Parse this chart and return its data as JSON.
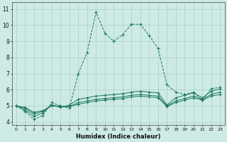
{
  "xlabel": "Humidex (Indice chaleur)",
  "x_values": [
    0,
    1,
    2,
    3,
    4,
    5,
    6,
    7,
    8,
    9,
    10,
    11,
    12,
    13,
    14,
    15,
    16,
    17,
    18,
    19,
    20,
    21,
    22,
    23
  ],
  "series": [
    [
      5.0,
      4.65,
      4.15,
      4.4,
      5.2,
      5.0,
      4.85,
      7.0,
      8.3,
      10.8,
      9.5,
      9.0,
      9.4,
      10.05,
      10.05,
      9.35,
      8.55,
      6.3,
      5.85,
      5.7,
      5.85,
      5.35,
      6.05,
      6.15
    ],
    [
      5.0,
      4.75,
      4.35,
      4.55,
      5.05,
      4.9,
      5.05,
      5.4,
      5.5,
      5.6,
      5.65,
      5.7,
      5.75,
      5.85,
      5.9,
      5.85,
      5.8,
      5.05,
      5.5,
      5.65,
      5.8,
      5.5,
      5.9,
      6.05
    ],
    [
      5.0,
      4.85,
      4.5,
      4.65,
      5.05,
      4.95,
      4.95,
      5.2,
      5.3,
      5.4,
      5.45,
      5.5,
      5.55,
      5.65,
      5.7,
      5.65,
      5.6,
      5.0,
      5.3,
      5.45,
      5.6,
      5.4,
      5.7,
      5.85
    ],
    [
      5.0,
      4.9,
      4.6,
      4.7,
      5.0,
      4.95,
      4.95,
      5.1,
      5.2,
      5.3,
      5.35,
      5.4,
      5.45,
      5.55,
      5.6,
      5.55,
      5.5,
      4.95,
      5.2,
      5.35,
      5.5,
      5.35,
      5.6,
      5.7
    ]
  ],
  "line_color": "#1a7a5e",
  "bg_color": "#ceeae4",
  "grid_color": "#aacfc8",
  "ylim": [
    3.8,
    11.4
  ],
  "xlim": [
    -0.5,
    23.5
  ],
  "yticks": [
    4,
    5,
    6,
    7,
    8,
    9,
    10,
    11
  ],
  "xticks": [
    0,
    1,
    2,
    3,
    4,
    5,
    6,
    7,
    8,
    9,
    10,
    11,
    12,
    13,
    14,
    15,
    16,
    17,
    18,
    19,
    20,
    21,
    22,
    23
  ]
}
